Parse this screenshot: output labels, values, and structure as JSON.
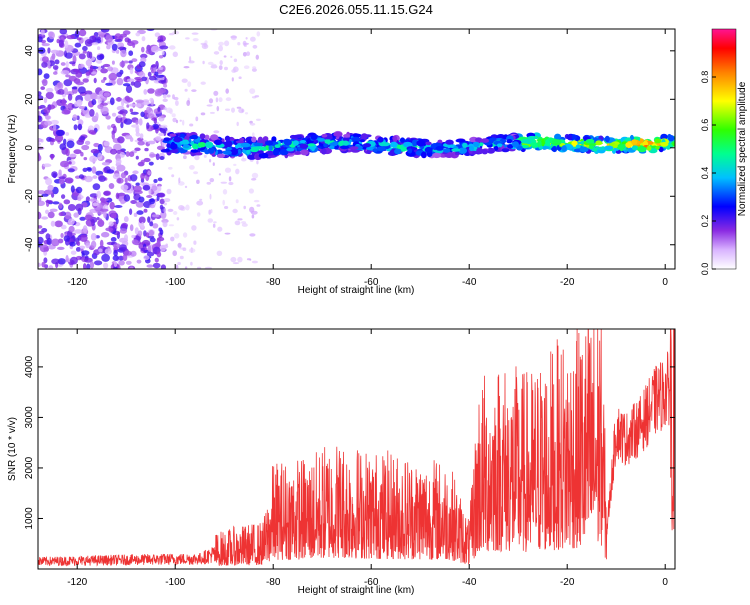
{
  "figure_title": "C2E6.2026.055.11.15.G24",
  "chart_data": [
    {
      "type": "heatmap",
      "title": "C2E6.2026.055.11.15.G24",
      "xlabel": "Height of straight line (km)",
      "ylabel": "Frequency (Hz)",
      "xlim": [
        -128,
        2
      ],
      "ylim": [
        -50,
        49
      ],
      "x_ticks": [
        -120,
        -100,
        -80,
        -60,
        -40,
        -20,
        0
      ],
      "y_ticks": [
        -40,
        -20,
        0,
        20,
        40
      ],
      "description_ridge_hz": 1,
      "colorbar": {
        "label": "Normalized spectral amplitude",
        "range": [
          0.0,
          1.0
        ],
        "ticks": [
          0.0,
          0.2,
          0.4,
          0.6,
          0.8
        ]
      },
      "regions": [
        {
          "x_range": [
            -128,
            -103
          ],
          "amplitude": "0.1-0.3 scattered noise across full frequency band"
        },
        {
          "x_range": [
            -103,
            -83
          ],
          "amplitude": "0.05-0.1 sparse noise"
        },
        {
          "x_range": [
            -102,
            -30
          ],
          "amplitude": "0.3-0.55 signal band near 0 Hz"
        },
        {
          "x_range": [
            -30,
            0
          ],
          "amplitude": "0.5-0.95 signal band near 0 Hz, peak near -4 km"
        }
      ]
    },
    {
      "type": "line",
      "xlabel": "Height of straight line (km)",
      "ylabel": "SNR (10 * v/v)",
      "xlim": [
        -128,
        2
      ],
      "ylim": [
        0,
        4750
      ],
      "x_ticks": [
        -120,
        -100,
        -80,
        -60,
        -40,
        -20,
        0
      ],
      "y_ticks": [
        1000,
        2000,
        3000,
        4000
      ],
      "series": [
        {
          "name": "SNR",
          "color": "#ee3333",
          "x": [
            -128,
            -110,
            -95,
            -92,
            -88,
            -82,
            -80,
            -72,
            -68,
            -60,
            -50,
            -44,
            -40,
            -38,
            -34,
            -28,
            -22,
            -16,
            -13,
            -12,
            -10,
            -8,
            -5,
            -2,
            0,
            2
          ],
          "values": [
            150,
            180,
            200,
            300,
            350,
            400,
            900,
            950,
            1100,
            1000,
            950,
            900,
            400,
            1600,
            1750,
            1650,
            1900,
            2100,
            2300,
            700,
            2900,
            2700,
            3000,
            3500,
            3700,
            3900
          ]
        }
      ]
    }
  ]
}
